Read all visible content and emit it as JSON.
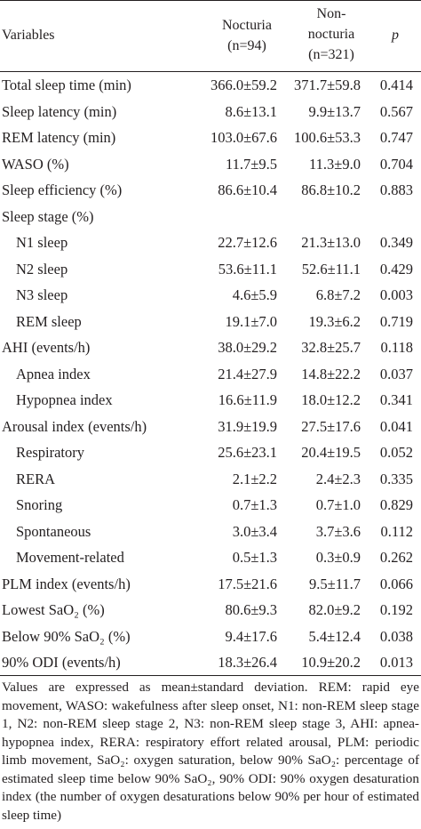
{
  "header": {
    "variables": "Variables",
    "nocturia_line1": "Nocturia",
    "nocturia_line2": "(n=94)",
    "non_line1": "Non-",
    "non_line2": "nocturia",
    "non_line3": "(n=321)",
    "p": "p"
  },
  "rows": [
    {
      "label": "Total sleep time (min)",
      "nocturia": "366.0±59.2",
      "non": "371.7±59.8",
      "p": "0.414",
      "indent": false
    },
    {
      "label": "Sleep latency (min)",
      "nocturia": "8.6±13.1",
      "non": "9.9±13.7",
      "p": "0.567",
      "indent": false
    },
    {
      "label": "REM latency (min)",
      "nocturia": "103.0±67.6",
      "non": "100.6±53.3",
      "p": "0.747",
      "indent": false
    },
    {
      "label": "WASO (%)",
      "nocturia": "11.7±9.5",
      "non": "11.3±9.0",
      "p": "0.704",
      "indent": false
    },
    {
      "label": "Sleep efficiency (%)",
      "nocturia": "86.6±10.4",
      "non": "86.8±10.2",
      "p": "0.883",
      "indent": false
    },
    {
      "label": "Sleep stage (%)",
      "nocturia": "",
      "non": "",
      "p": "",
      "indent": false
    },
    {
      "label": "N1 sleep",
      "nocturia": "22.7±12.6",
      "non": "21.3±13.0",
      "p": "0.349",
      "indent": true
    },
    {
      "label": "N2 sleep",
      "nocturia": "53.6±11.1",
      "non": "52.6±11.1",
      "p": "0.429",
      "indent": true
    },
    {
      "label": "N3 sleep",
      "nocturia": "4.6±5.9",
      "non": "6.8±7.2",
      "p": "0.003",
      "indent": true
    },
    {
      "label": "REM sleep",
      "nocturia": "19.1±7.0",
      "non": "19.3±6.2",
      "p": "0.719",
      "indent": true
    },
    {
      "label": "AHI (events/h)",
      "nocturia": "38.0±29.2",
      "non": "32.8±25.7",
      "p": "0.118",
      "indent": false
    },
    {
      "label": "Apnea index",
      "nocturia": "21.4±27.9",
      "non": "14.8±22.2",
      "p": "0.037",
      "indent": true
    },
    {
      "label": "Hypopnea index",
      "nocturia": "16.6±11.9",
      "non": "18.0±12.2",
      "p": "0.341",
      "indent": true
    },
    {
      "label": "Arousal index (events/h)",
      "nocturia": "31.9±19.9",
      "non": "27.5±17.6",
      "p": "0.041",
      "indent": false
    },
    {
      "label": "Respiratory",
      "nocturia": "25.6±23.1",
      "non": "20.4±19.5",
      "p": "0.052",
      "indent": true
    },
    {
      "label": "RERA",
      "nocturia": "2.1±2.2",
      "non": "2.4±2.3",
      "p": "0.335",
      "indent": true
    },
    {
      "label": "Snoring",
      "nocturia": "0.7±1.3",
      "non": "0.7±1.0",
      "p": "0.829",
      "indent": true
    },
    {
      "label": "Spontaneous",
      "nocturia": "3.0±3.4",
      "non": "3.7±3.6",
      "p": "0.112",
      "indent": true
    },
    {
      "label": "Movement-related",
      "nocturia": "0.5±1.3",
      "non": "0.3±0.9",
      "p": "0.262",
      "indent": true
    },
    {
      "label": "PLM index (events/h)",
      "nocturia": "17.5±21.6",
      "non": "9.5±11.7",
      "p": "0.066",
      "indent": false
    },
    {
      "label": "Lowest SaO₂ (%)",
      "nocturia": "80.6±9.3",
      "non": "82.0±9.2",
      "p": "0.192",
      "indent": false
    },
    {
      "label": "Below 90% SaO₂ (%)",
      "nocturia": "9.4±17.6",
      "non": "5.4±12.4",
      "p": "0.038",
      "indent": false
    },
    {
      "label": "90% ODI (events/h)",
      "nocturia": "18.3±26.4",
      "non": "10.9±20.2",
      "p": "0.013",
      "indent": false
    }
  ],
  "footnote": "Values are expressed as mean±standard deviation. REM: rapid eye movement, WASO: wakefulness after sleep onset, N1: non-REM sleep stage 1, N2: non-REM sleep stage 2, N3: non-REM sleep stage 3, AHI: apnea-hypopnea index, RERA: respiratory effort related arousal, PLM: periodic limb movement, SaO₂: oxygen saturation, below 90% SaO₂: percentage of estimated sleep time below 90% SaO₂, 90% ODI: 90% oxygen desaturation index (the number of oxygen desaturations below 90% per hour of estimated sleep time)"
}
